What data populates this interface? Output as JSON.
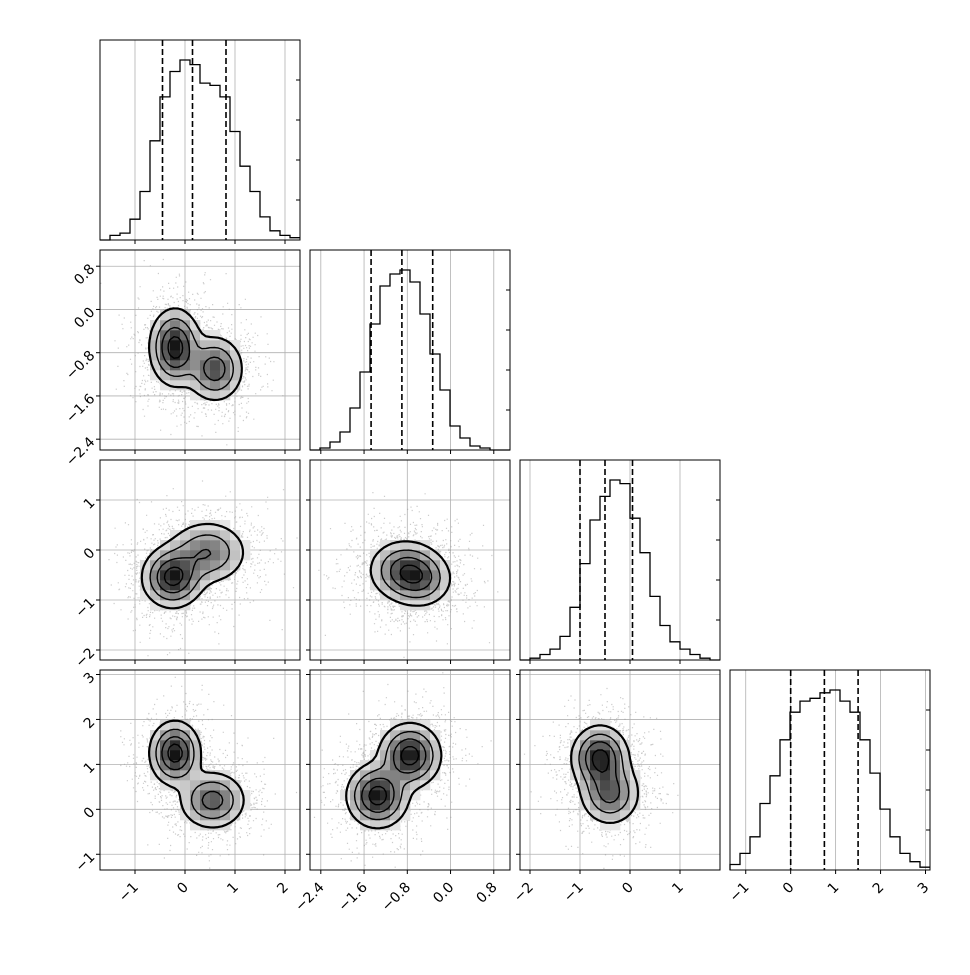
{
  "chart_data": {
    "type": "corner",
    "variables": 4,
    "colors": {
      "ink": "#000000",
      "grid": "#b0b0b0",
      "hist_max": "#000000",
      "scatter": "#9a9a9a",
      "background": "#ffffff"
    },
    "grid": true,
    "axis_ranges": [
      [
        -1.7,
        2.3
      ],
      [
        -2.6,
        1.1
      ],
      [
        -2.2,
        1.8
      ],
      [
        -1.35,
        3.1
      ]
    ],
    "tick_labels": [
      [
        "-1",
        "0",
        "1",
        "2"
      ],
      [
        "-2.4",
        "-1.6",
        "-0.8",
        "0.0",
        "0.8"
      ],
      [
        "-2",
        "-1",
        "0",
        "1"
      ],
      [
        "-1",
        "0",
        "1",
        "2",
        "3"
      ]
    ],
    "histograms": [
      {
        "bin_edges_start": -1.7,
        "bin_width": 0.2,
        "counts": [
          0,
          2,
          3,
          9,
          21,
          43,
          62,
          73,
          78,
          76,
          68,
          67,
          62,
          47,
          32,
          21,
          10,
          4,
          2,
          1
        ],
        "quantiles": [
          -0.45,
          0.15,
          0.82
        ]
      },
      {
        "bin_edges_start": -2.6,
        "bin_width": 0.185,
        "counts": [
          0,
          1,
          4,
          9,
          21,
          39,
          63,
          82,
          88,
          90,
          84,
          68,
          48,
          30,
          12,
          6,
          2,
          1,
          0,
          0
        ],
        "quantiles": [
          -1.47,
          -0.9,
          -0.33
        ]
      },
      {
        "bin_edges_start": -2.2,
        "bin_width": 0.2,
        "counts": [
          0,
          1,
          3,
          6,
          13,
          29,
          53,
          77,
          90,
          99,
          97,
          78,
          59,
          35,
          19,
          10,
          6,
          3,
          1,
          0
        ],
        "quantiles": [
          -1.0,
          -0.5,
          0.05
        ]
      },
      {
        "bin_edges_start": -1.35,
        "bin_width": 0.2225,
        "counts": [
          2,
          6,
          12,
          24,
          34,
          47,
          57,
          61,
          62,
          64,
          65,
          61,
          57,
          47,
          35,
          22,
          12,
          6,
          3,
          1
        ],
        "quantiles": [
          0.0,
          0.75,
          1.5
        ]
      }
    ],
    "density_modes": {
      "1,0": [
        [
          -0.2,
          -0.7,
          0.25,
          0.35,
          1.0
        ],
        [
          0.6,
          -1.1,
          0.28,
          0.3,
          0.75
        ]
      ],
      "2,0": [
        [
          -0.25,
          -0.55,
          0.3,
          0.3,
          1.0
        ],
        [
          0.45,
          -0.05,
          0.4,
          0.32,
          0.6
        ]
      ],
      "2,1": [
        [
          -0.85,
          -0.4,
          0.33,
          0.3,
          1.0
        ],
        [
          -0.55,
          -0.6,
          0.3,
          0.28,
          0.7
        ]
      ],
      "3,0": [
        [
          -0.2,
          1.25,
          0.25,
          0.35,
          1.0
        ],
        [
          0.55,
          0.2,
          0.33,
          0.32,
          0.7
        ]
      ],
      "3,1": [
        [
          -1.35,
          0.3,
          0.28,
          0.35,
          1.0
        ],
        [
          -0.75,
          1.2,
          0.28,
          0.35,
          1.0
        ]
      ],
      "3,2": [
        [
          -0.6,
          1.15,
          0.28,
          0.35,
          1.0
        ],
        [
          -0.4,
          0.35,
          0.3,
          0.35,
          0.7
        ]
      ]
    }
  }
}
